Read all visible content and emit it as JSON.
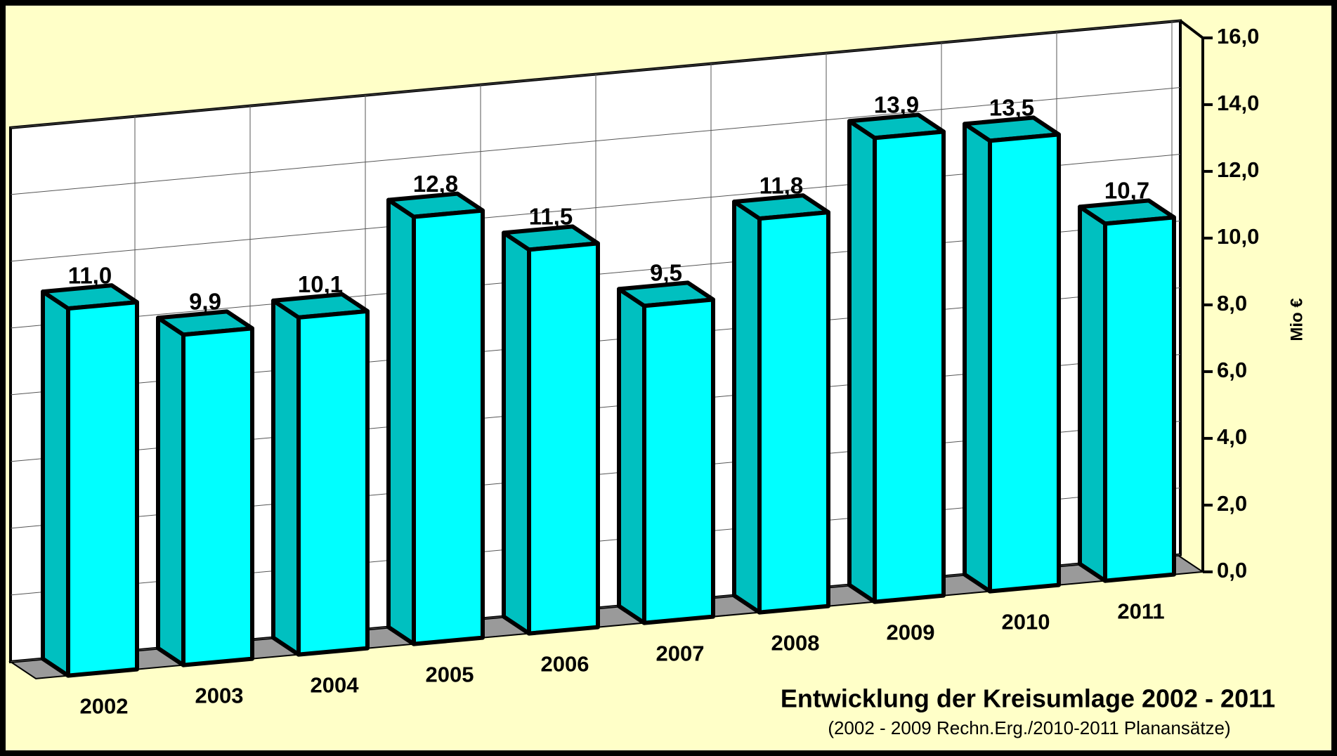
{
  "chart_data": {
    "type": "bar3d",
    "title": "Entwicklung der Kreisumlage 2002 - 2011",
    "subtitle": "(2002 - 2009 Rechn.Erg./2010-2011 Planansätze)",
    "y_axis_label": "Mio €",
    "categories": [
      "2002",
      "2003",
      "2004",
      "2005",
      "2006",
      "2007",
      "2008",
      "2009",
      "2010",
      "2011"
    ],
    "values": [
      11.0,
      9.9,
      10.1,
      12.8,
      11.5,
      9.5,
      11.8,
      13.9,
      13.5,
      10.7
    ],
    "value_labels": [
      "11,0",
      "9,9",
      "10,1",
      "12,8",
      "11,5",
      "9,5",
      "11,8",
      "13,9",
      "13,5",
      "10,7"
    ],
    "color": "#00ffff",
    "ylim": [
      0,
      16
    ],
    "yticks": [
      {
        "value": 0,
        "label": "0,0"
      },
      {
        "value": 2,
        "label": "2,0"
      },
      {
        "value": 4,
        "label": "4,0"
      },
      {
        "value": 6,
        "label": "6,0"
      },
      {
        "value": 8,
        "label": "8,0"
      },
      {
        "value": 10,
        "label": "10,0"
      },
      {
        "value": 12,
        "label": "12,0"
      },
      {
        "value": 14,
        "label": "14,0"
      },
      {
        "value": 16,
        "label": "16,0"
      }
    ],
    "grid": true
  }
}
